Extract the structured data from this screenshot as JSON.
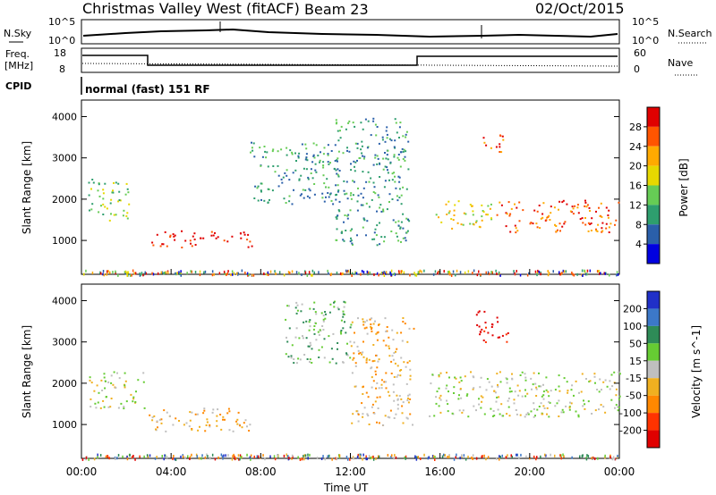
{
  "header": {
    "station": "Christmas Valley West (fitACF)",
    "beam": "Beam 23",
    "date": "02/Oct/2015"
  },
  "strips": {
    "nsky_label": "N.Sky",
    "nsky_tick_top": "10^5",
    "nsky_tick_bottom": "10^0",
    "nsearch_label": "N.Search",
    "nsearch_tick_top": "10^5",
    "nsearch_tick_bottom": "10^0",
    "freq_label": "Freq.",
    "freq_unit": "[MHz]",
    "freq_tick_top": "18",
    "freq_tick_bottom": "8",
    "nave_label": "Nave",
    "nave_tick_top": "60",
    "nave_tick_bottom": "0",
    "cpid_label": "CPID",
    "mode_text": "normal (fast) 151 RF"
  },
  "chart_data": [
    {
      "type": "heatmap",
      "panel": "power",
      "xlabel": "",
      "ylabel": "Slant Range [km]",
      "x_range_hours": [
        0,
        24
      ],
      "ylim": [
        180,
        4400
      ],
      "yticks": [
        "1000",
        "2000",
        "3000",
        "4000"
      ],
      "colorbar": {
        "label": "Power [dB]",
        "ticks": [
          "28",
          "24",
          "20",
          "16",
          "12",
          "8",
          "4"
        ],
        "colors": [
          "#e00000",
          "#ff5500",
          "#ffaa00",
          "#e6d800",
          "#66cc55",
          "#2e9e6e",
          "#2a5faa",
          "#0000e0"
        ]
      },
      "regions": [
        {
          "t0": 0.3,
          "t1": 2.2,
          "r0": 1500,
          "r1": 2500,
          "level": 3
        },
        {
          "t0": 3.0,
          "t1": 7.6,
          "r0": 850,
          "r1": 1250,
          "level": 7
        },
        {
          "t0": 7.5,
          "t1": 11.5,
          "r0": 1900,
          "r1": 3400,
          "level": 2
        },
        {
          "t0": 11.3,
          "t1": 14.6,
          "r0": 900,
          "r1": 4000,
          "level": 2
        },
        {
          "t0": 15.8,
          "t1": 18.3,
          "r0": 1300,
          "r1": 2000,
          "level": 4
        },
        {
          "t0": 17.8,
          "t1": 18.8,
          "r0": 3100,
          "r1": 3600,
          "level": 6
        },
        {
          "t0": 18.5,
          "t1": 24.0,
          "r0": 1200,
          "r1": 2000,
          "level": 6
        }
      ]
    },
    {
      "type": "heatmap",
      "panel": "velocity",
      "xlabel": "Time UT",
      "ylabel": "Slant Range [km]",
      "x_range_hours": [
        0,
        24
      ],
      "xticks": [
        "00:00",
        "04:00",
        "08:00",
        "12:00",
        "16:00",
        "20:00",
        "00:00"
      ],
      "ylim": [
        180,
        4400
      ],
      "yticks": [
        "1000",
        "2000",
        "3000",
        "4000"
      ],
      "colorbar": {
        "label": "Velocity [m s^-1]",
        "ticks": [
          "200",
          "100",
          "50",
          "15",
          "-15",
          "-50",
          "-100",
          "-200"
        ],
        "colors": [
          "#2030c8",
          "#3c78c8",
          "#2e8b57",
          "#66cc33",
          "#bfbfbf",
          "#f0b020",
          "#ff8800",
          "#ff3300",
          "#e00000"
        ]
      },
      "regions": [
        {
          "t0": 0.3,
          "t1": 2.8,
          "r0": 1400,
          "r1": 2300,
          "level": 4
        },
        {
          "t0": 3.0,
          "t1": 7.6,
          "r0": 850,
          "r1": 1450,
          "level": 3
        },
        {
          "t0": 9.0,
          "t1": 12.0,
          "r0": 2500,
          "r1": 4000,
          "level": 5
        },
        {
          "t0": 12.0,
          "t1": 14.8,
          "r0": 1000,
          "r1": 3600,
          "level": 3
        },
        {
          "t0": 17.6,
          "t1": 19.0,
          "r0": 3000,
          "r1": 3800,
          "level": 0
        },
        {
          "t0": 15.5,
          "t1": 24.0,
          "r0": 1200,
          "r1": 2300,
          "level": 4
        }
      ]
    }
  ]
}
